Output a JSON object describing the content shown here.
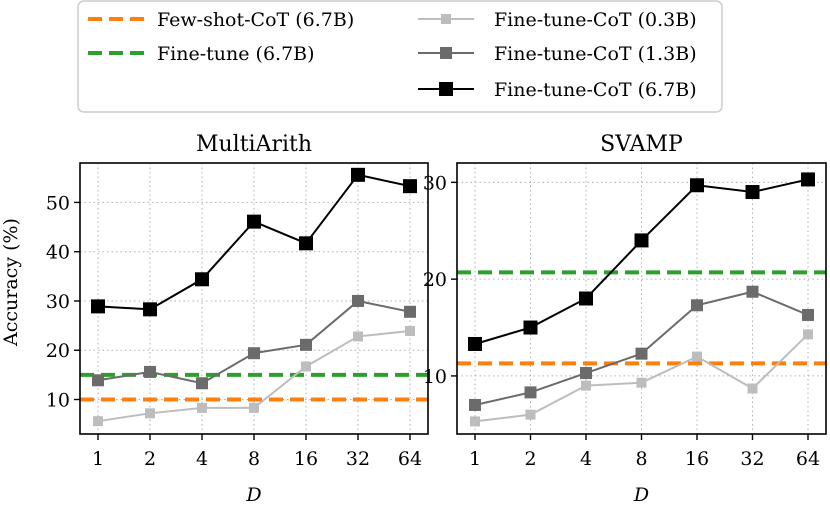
{
  "legend": [
    {
      "label": "Few-shot-CoT (6.7B)",
      "color": "#ff7f0e",
      "style": "dashed"
    },
    {
      "label": "Fine-tune (6.7B)",
      "color": "#2ca02c",
      "style": "dashed"
    },
    {
      "label": "Fine-tune-CoT (0.3B)",
      "color": "#bdbdbd",
      "style": "solid-square"
    },
    {
      "label": "Fine-tune-CoT (1.3B)",
      "color": "#6b6b6b",
      "style": "solid-square"
    },
    {
      "label": "Fine-tune-CoT (6.7B)",
      "color": "#000000",
      "style": "solid-square"
    }
  ],
  "chart_data": [
    {
      "type": "line",
      "title": "MultiArith",
      "xlabel": "D",
      "ylabel": "Accuracy (%)",
      "categories": [
        "1",
        "2",
        "4",
        "8",
        "16",
        "32",
        "64"
      ],
      "ylim": [
        3,
        58
      ],
      "yticks": [
        10,
        20,
        30,
        40,
        50
      ],
      "ytick_labels": [
        "10",
        "20",
        "30",
        "40",
        "50"
      ],
      "grid": true,
      "series": [
        {
          "name": "Fine-tune-CoT (0.3B)",
          "color": "#bdbdbd",
          "values": [
            5.6,
            7.2,
            8.3,
            8.3,
            16.7,
            22.8,
            23.9
          ]
        },
        {
          "name": "Fine-tune-CoT (1.3B)",
          "color": "#6b6b6b",
          "values": [
            13.9,
            15.6,
            13.3,
            19.4,
            21.1,
            30.0,
            27.8
          ]
        },
        {
          "name": "Fine-tune-CoT (6.7B)",
          "color": "#000000",
          "values": [
            28.9,
            28.3,
            34.4,
            46.1,
            41.7,
            55.6,
            53.3
          ]
        }
      ],
      "hlines": [
        {
          "name": "Few-shot-CoT (6.7B)",
          "color": "#ff7f0e",
          "value": 10.0
        },
        {
          "name": "Fine-tune (6.7B)",
          "color": "#2ca02c",
          "value": 15.0
        }
      ]
    },
    {
      "type": "line",
      "title": "SVAMP",
      "xlabel": "D",
      "ylabel": "",
      "categories": [
        "1",
        "2",
        "4",
        "8",
        "16",
        "32",
        "64"
      ],
      "ylim": [
        4,
        32
      ],
      "yticks": [
        10,
        20,
        30
      ],
      "ytick_labels": [
        "10",
        "20",
        "30"
      ],
      "grid": true,
      "series": [
        {
          "name": "Fine-tune-CoT (0.3B)",
          "color": "#bdbdbd",
          "values": [
            5.3,
            6.0,
            9.0,
            9.3,
            12.0,
            8.7,
            14.3
          ]
        },
        {
          "name": "Fine-tune-CoT (1.3B)",
          "color": "#6b6b6b",
          "values": [
            7.0,
            8.3,
            10.3,
            12.3,
            17.3,
            18.7,
            16.3
          ]
        },
        {
          "name": "Fine-tune-CoT (6.7B)",
          "color": "#000000",
          "values": [
            13.3,
            15.0,
            18.0,
            24.0,
            29.7,
            29.0,
            30.3
          ]
        }
      ],
      "hlines": [
        {
          "name": "Few-shot-CoT (6.7B)",
          "color": "#ff7f0e",
          "value": 11.3
        },
        {
          "name": "Fine-tune (6.7B)",
          "color": "#2ca02c",
          "value": 20.7
        }
      ]
    }
  ]
}
